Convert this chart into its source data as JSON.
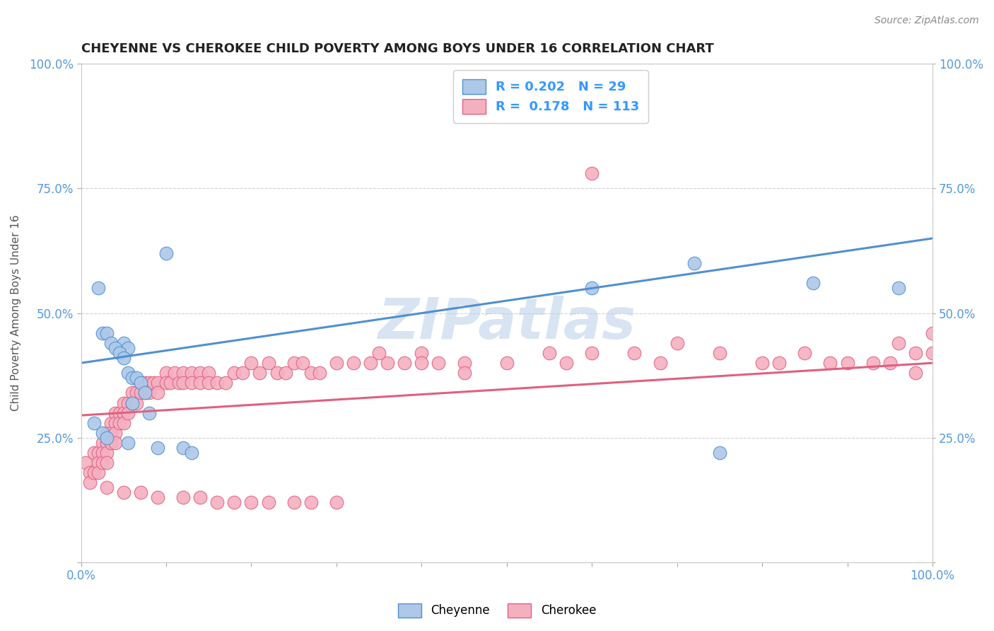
{
  "title": "CHEYENNE VS CHEROKEE CHILD POVERTY AMONG BOYS UNDER 16 CORRELATION CHART",
  "source": "Source: ZipAtlas.com",
  "ylabel": "Child Poverty Among Boys Under 16",
  "watermark": "ZIPatlas",
  "cheyenne_R": 0.202,
  "cheyenne_N": 29,
  "cherokee_R": 0.178,
  "cherokee_N": 113,
  "cheyenne_color": "#adc8e8",
  "cherokee_color": "#f5b0c0",
  "cheyenne_line_color": "#5090d0",
  "cherokee_line_color": "#e06080",
  "title_color": "#222222",
  "source_color": "#888888",
  "legend_color": "#3399ff",
  "background_color": "#ffffff",
  "grid_color": "#cccccc",
  "axis_label_color": "#555555",
  "tick_label_color": "#5599dd",
  "cheyenne_x": [
    0.05,
    0.055,
    0.1,
    0.02,
    0.025,
    0.03,
    0.035,
    0.04,
    0.045,
    0.05,
    0.055,
    0.06,
    0.065,
    0.07,
    0.075,
    0.06,
    0.08,
    0.015,
    0.025,
    0.03,
    0.055,
    0.09,
    0.12,
    0.13,
    0.6,
    0.72,
    0.75,
    0.86,
    0.96
  ],
  "cheyenne_y": [
    0.44,
    0.43,
    0.62,
    0.55,
    0.46,
    0.46,
    0.44,
    0.43,
    0.42,
    0.41,
    0.38,
    0.37,
    0.37,
    0.36,
    0.34,
    0.32,
    0.3,
    0.28,
    0.26,
    0.25,
    0.24,
    0.23,
    0.23,
    0.22,
    0.55,
    0.6,
    0.22,
    0.56,
    0.55
  ],
  "cherokee_x": [
    0.005,
    0.01,
    0.01,
    0.015,
    0.015,
    0.02,
    0.02,
    0.02,
    0.025,
    0.025,
    0.025,
    0.03,
    0.03,
    0.03,
    0.03,
    0.035,
    0.035,
    0.035,
    0.04,
    0.04,
    0.04,
    0.04,
    0.045,
    0.045,
    0.05,
    0.05,
    0.05,
    0.055,
    0.055,
    0.06,
    0.06,
    0.065,
    0.065,
    0.07,
    0.07,
    0.075,
    0.075,
    0.08,
    0.08,
    0.085,
    0.09,
    0.09,
    0.1,
    0.1,
    0.105,
    0.11,
    0.115,
    0.12,
    0.12,
    0.13,
    0.13,
    0.14,
    0.14,
    0.15,
    0.15,
    0.16,
    0.17,
    0.18,
    0.19,
    0.2,
    0.21,
    0.22,
    0.23,
    0.24,
    0.25,
    0.26,
    0.27,
    0.28,
    0.3,
    0.32,
    0.34,
    0.35,
    0.36,
    0.38,
    0.4,
    0.4,
    0.42,
    0.45,
    0.45,
    0.5,
    0.55,
    0.57,
    0.6,
    0.6,
    0.65,
    0.68,
    0.7,
    0.75,
    0.8,
    0.82,
    0.85,
    0.88,
    0.9,
    0.93,
    0.95,
    0.96,
    0.98,
    0.98,
    1.0,
    1.0,
    0.03,
    0.05,
    0.07,
    0.09,
    0.12,
    0.14,
    0.16,
    0.18,
    0.2,
    0.22,
    0.25,
    0.27,
    0.3
  ],
  "cherokee_y": [
    0.2,
    0.18,
    0.16,
    0.22,
    0.18,
    0.22,
    0.2,
    0.18,
    0.24,
    0.22,
    0.2,
    0.26,
    0.24,
    0.22,
    0.2,
    0.28,
    0.26,
    0.24,
    0.3,
    0.28,
    0.26,
    0.24,
    0.3,
    0.28,
    0.32,
    0.3,
    0.28,
    0.32,
    0.3,
    0.34,
    0.32,
    0.34,
    0.32,
    0.36,
    0.34,
    0.36,
    0.34,
    0.36,
    0.34,
    0.36,
    0.36,
    0.34,
    0.38,
    0.36,
    0.36,
    0.38,
    0.36,
    0.38,
    0.36,
    0.38,
    0.36,
    0.38,
    0.36,
    0.38,
    0.36,
    0.36,
    0.36,
    0.38,
    0.38,
    0.4,
    0.38,
    0.4,
    0.38,
    0.38,
    0.4,
    0.4,
    0.38,
    0.38,
    0.4,
    0.4,
    0.4,
    0.42,
    0.4,
    0.4,
    0.42,
    0.4,
    0.4,
    0.4,
    0.38,
    0.4,
    0.42,
    0.4,
    0.42,
    0.78,
    0.42,
    0.4,
    0.44,
    0.42,
    0.4,
    0.4,
    0.42,
    0.4,
    0.4,
    0.4,
    0.4,
    0.44,
    0.38,
    0.42,
    0.42,
    0.46,
    0.15,
    0.14,
    0.14,
    0.13,
    0.13,
    0.13,
    0.12,
    0.12,
    0.12,
    0.12,
    0.12,
    0.12,
    0.12
  ],
  "xlim": [
    0.0,
    1.0
  ],
  "ylim": [
    0.0,
    1.0
  ],
  "cheyenne_line_x0": 0.0,
  "cheyenne_line_y0": 0.4,
  "cheyenne_line_x1": 1.0,
  "cheyenne_line_y1": 0.65,
  "cherokee_line_x0": 0.0,
  "cherokee_line_y0": 0.295,
  "cherokee_line_x1": 1.0,
  "cherokee_line_y1": 0.4,
  "ytick_positions": [
    0.0,
    0.25,
    0.5,
    0.75,
    1.0
  ],
  "ytick_labels": [
    "",
    "25.0%",
    "50.0%",
    "75.0%",
    "100.0%"
  ],
  "xtick_positions": [
    0.0,
    0.1,
    0.2,
    0.3,
    0.4,
    0.5,
    0.6,
    0.7,
    0.8,
    0.9,
    1.0
  ],
  "xtick_labels": [
    "0.0%",
    "",
    "",
    "",
    "",
    "",
    "",
    "",
    "",
    "",
    "100.0%"
  ]
}
